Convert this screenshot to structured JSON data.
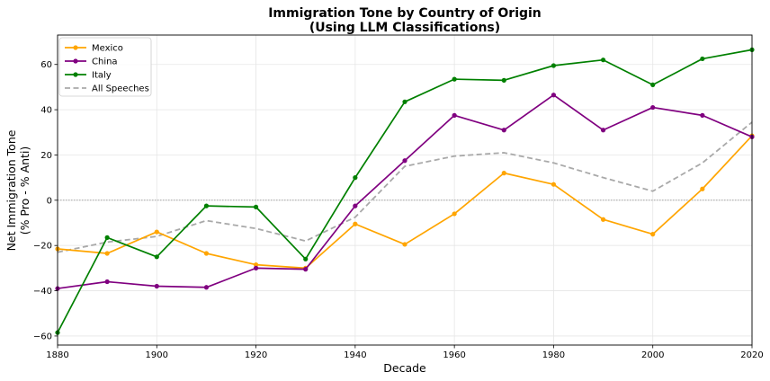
{
  "chart_data": {
    "type": "line",
    "title": "Immigration Tone by Country of Origin",
    "subtitle": "(Using LLM Classifications)",
    "xlabel": "Decade",
    "ylabel": "Net Immigration Tone",
    "ylabel2": "(% Pro - % Anti)",
    "xlim": [
      1880,
      2020
    ],
    "ylim": [
      -64,
      73
    ],
    "xticks": [
      1880,
      1900,
      1920,
      1940,
      1960,
      1980,
      2000,
      2020
    ],
    "yticks": [
      -60,
      -40,
      -20,
      0,
      20,
      40,
      60
    ],
    "grid": true,
    "legend_position": "top-left",
    "reference_line": 0,
    "x": [
      1880,
      1890,
      1900,
      1910,
      1920,
      1930,
      1940,
      1950,
      1960,
      1970,
      1980,
      1990,
      2000,
      2010,
      2020
    ],
    "series": [
      {
        "name": "Mexico",
        "color": "#FFA500",
        "style": "solid",
        "markers": true,
        "values": [
          -21.5,
          -23.5,
          -14,
          -23.5,
          -28.5,
          -30,
          -10.5,
          -19.5,
          -6,
          12,
          7,
          -8.5,
          -15,
          5,
          28.5
        ]
      },
      {
        "name": "China",
        "color": "#800080",
        "style": "solid",
        "markers": true,
        "values": [
          -39,
          -36,
          -38,
          -38.5,
          -30,
          -30.5,
          -2.5,
          17.5,
          37.5,
          31,
          46.5,
          31,
          41,
          37.5,
          28
        ]
      },
      {
        "name": "Italy",
        "color": "#008000",
        "style": "solid",
        "markers": true,
        "values": [
          -58.5,
          -16.5,
          -25,
          -2.5,
          -3,
          -26,
          10,
          43.5,
          53.5,
          53,
          59.5,
          62,
          51,
          62.5,
          66.5
        ]
      },
      {
        "name": "All Speeches",
        "color": "#A9A9A9",
        "style": "dashed",
        "markers": false,
        "values": [
          -23,
          -18.5,
          -16,
          -9,
          -12.5,
          -18,
          -7.5,
          15,
          19.5,
          21,
          16.5,
          10,
          4,
          16.5,
          34.5
        ]
      }
    ]
  }
}
